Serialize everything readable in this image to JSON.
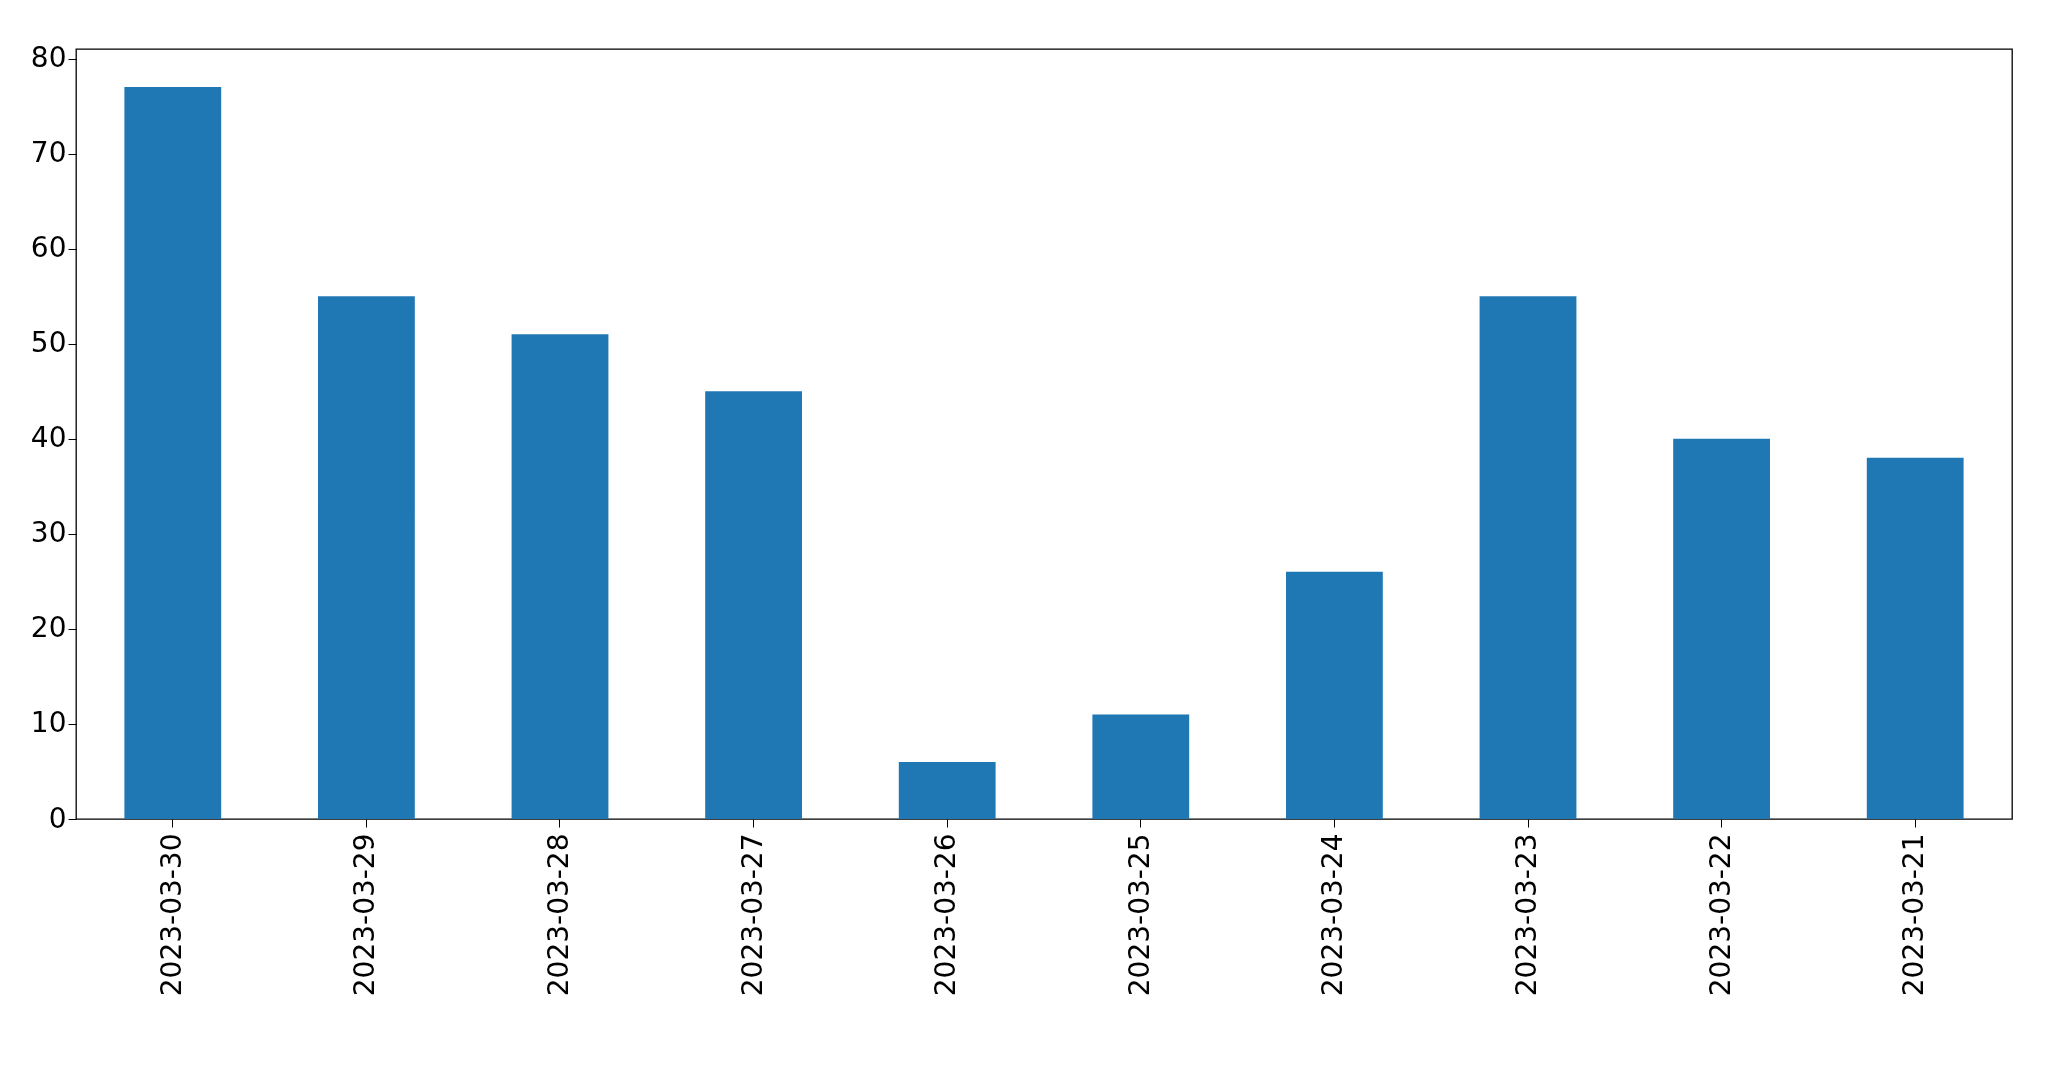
{
  "chart_data": {
    "type": "bar",
    "categories": [
      "2023-03-30",
      "2023-03-29",
      "2023-03-28",
      "2023-03-27",
      "2023-03-26",
      "2023-03-25",
      "2023-03-24",
      "2023-03-23",
      "2023-03-22",
      "2023-03-21"
    ],
    "values": [
      77,
      55,
      51,
      45,
      6,
      11,
      26,
      55,
      40,
      38
    ],
    "color": "#1f77b4",
    "ylim": [
      0,
      81
    ],
    "yticks": [
      0,
      10,
      20,
      30,
      40,
      50,
      60,
      70,
      80
    ],
    "grid": false
  }
}
